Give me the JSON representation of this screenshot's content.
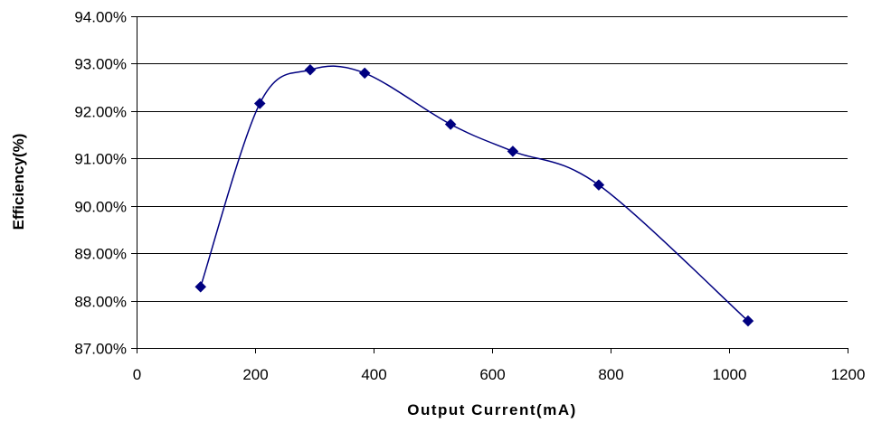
{
  "chart_data": {
    "type": "line",
    "title": "",
    "xlabel": "Output Current(mA)",
    "ylabel": "Efficiency(%)",
    "xlim": [
      0,
      1200
    ],
    "ylim": [
      87,
      94
    ],
    "x_ticks": [
      "0",
      "200",
      "400",
      "600",
      "800",
      "1000",
      "1200"
    ],
    "y_ticks": [
      "87.00%",
      "88.00%",
      "89.00%",
      "90.00%",
      "91.00%",
      "92.00%",
      "93.00%",
      "94.00%"
    ],
    "grid": true,
    "smooth": true,
    "series": [
      {
        "color": "#000080",
        "marker": "diamond",
        "x": [
          108,
          208,
          293,
          385,
          530,
          635,
          780,
          1032
        ],
        "y": [
          88.29,
          92.16,
          92.87,
          92.8,
          91.72,
          91.15,
          90.44,
          87.57
        ]
      }
    ]
  }
}
